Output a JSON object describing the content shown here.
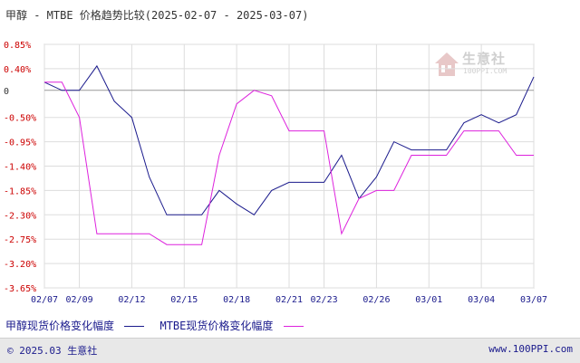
{
  "title": "甲醇 - MTBE 价格趋势比较(2025-02-07 - 2025-03-07)",
  "watermark": {
    "name": "生意社",
    "url": "100PPI.COM"
  },
  "footer": {
    "left": "© 2025.03 生意社",
    "right": "www.100PPI.com"
  },
  "colors": {
    "series1": "#1a1a8c",
    "series2": "#dd22dd",
    "negative_tick": "#cc0000",
    "grid": "#dddddd",
    "zero_line": "#999999"
  },
  "chart_data": {
    "type": "line",
    "ylim": [
      -3.65,
      0.85
    ],
    "yticks": [
      0.85,
      0.4,
      0,
      -0.5,
      -0.95,
      -1.4,
      -1.85,
      -2.3,
      -2.75,
      -3.2,
      -3.65
    ],
    "ytick_labels": [
      "0.85%",
      "0.40%",
      "0",
      "-0.50%",
      "-0.95%",
      "-1.40%",
      "-1.85%",
      "-2.30%",
      "-2.75%",
      "-3.20%",
      "-3.65%"
    ],
    "xlim": [
      0,
      28
    ],
    "xticks": [
      0,
      2,
      5,
      8,
      11,
      14,
      16,
      19,
      22,
      25,
      28
    ],
    "xtick_labels": [
      "02/07",
      "02/09",
      "02/12",
      "02/15",
      "02/18",
      "02/21",
      "02/23",
      "02/26",
      "03/01",
      "03/04",
      "03/07"
    ],
    "grid": true,
    "legend_position": "bottom",
    "series": [
      {
        "name": "甲醇现货价格变化幅度",
        "x": [
          0,
          1,
          2,
          3,
          4,
          5,
          6,
          7,
          8,
          9,
          10,
          11,
          12,
          13,
          14,
          15,
          16,
          17,
          18,
          19,
          20,
          21,
          22,
          23,
          24,
          25,
          26,
          27,
          28
        ],
        "y": [
          0.15,
          0.0,
          0.0,
          0.45,
          -0.2,
          -0.5,
          -1.6,
          -2.3,
          -2.3,
          -2.3,
          -1.85,
          -2.1,
          -2.3,
          -1.85,
          -1.7,
          -1.7,
          -1.7,
          -1.2,
          -2.0,
          -1.6,
          -0.95,
          -1.1,
          -1.1,
          -1.1,
          -0.6,
          -0.45,
          -0.6,
          -0.45,
          0.25
        ]
      },
      {
        "name": "MTBE现货价格变化幅度",
        "x": [
          0,
          1,
          2,
          3,
          4,
          5,
          6,
          7,
          8,
          9,
          10,
          11,
          12,
          13,
          14,
          15,
          16,
          17,
          18,
          19,
          20,
          21,
          22,
          23,
          24,
          25,
          26,
          27,
          28
        ],
        "y": [
          0.15,
          0.15,
          -0.5,
          -2.65,
          -2.65,
          -2.65,
          -2.65,
          -2.85,
          -2.85,
          -2.85,
          -1.2,
          -0.25,
          0.0,
          -0.1,
          -0.75,
          -0.75,
          -0.75,
          -2.65,
          -2.0,
          -1.85,
          -1.85,
          -1.2,
          -1.2,
          -1.2,
          -0.75,
          -0.75,
          -0.75,
          -1.2,
          -1.2
        ]
      }
    ]
  }
}
